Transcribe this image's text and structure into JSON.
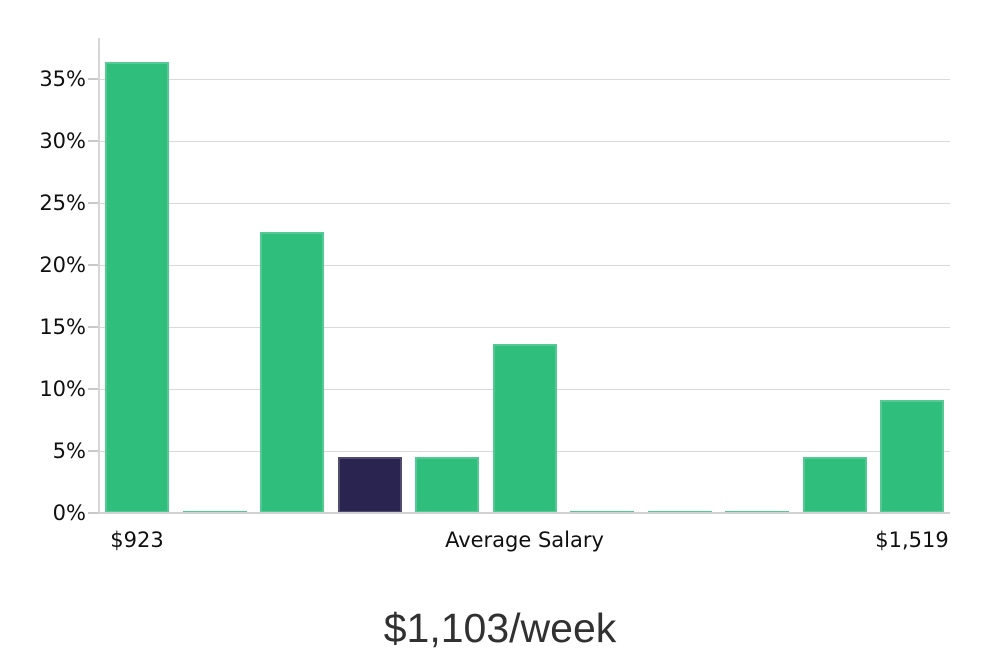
{
  "chart_data": {
    "type": "bar",
    "title": "$1,103/week",
    "xlabel": "",
    "ylabel": "",
    "grid": true,
    "legend": null,
    "ylim": [
      0,
      38
    ],
    "y_ticks": [
      {
        "label": "0%",
        "value": 0
      },
      {
        "label": "5%",
        "value": 5
      },
      {
        "label": "10%",
        "value": 10
      },
      {
        "label": "15%",
        "value": 15
      },
      {
        "label": "20%",
        "value": 20
      },
      {
        "label": "25%",
        "value": 25
      },
      {
        "label": "30%",
        "value": 30
      },
      {
        "label": "35%",
        "value": 35
      }
    ],
    "x_ticks": [
      {
        "label": "$923",
        "bar_index": 0
      },
      {
        "label": "Average Salary",
        "bar_index": 5
      },
      {
        "label": "$1,519",
        "bar_index": 10
      }
    ],
    "bars": [
      {
        "value": 36.4,
        "color": "green"
      },
      {
        "value": 0.2,
        "color": "green"
      },
      {
        "value": 22.7,
        "color": "green"
      },
      {
        "value": 4.5,
        "color": "dark"
      },
      {
        "value": 4.5,
        "color": "green"
      },
      {
        "value": 13.6,
        "color": "green"
      },
      {
        "value": 0.2,
        "color": "green"
      },
      {
        "value": 0.2,
        "color": "green"
      },
      {
        "value": 0.2,
        "color": "green"
      },
      {
        "value": 4.5,
        "color": "green"
      },
      {
        "value": 9.1,
        "color": "green"
      }
    ],
    "colors": {
      "green": "#2fbe7c",
      "dark": "#2a2550"
    }
  }
}
